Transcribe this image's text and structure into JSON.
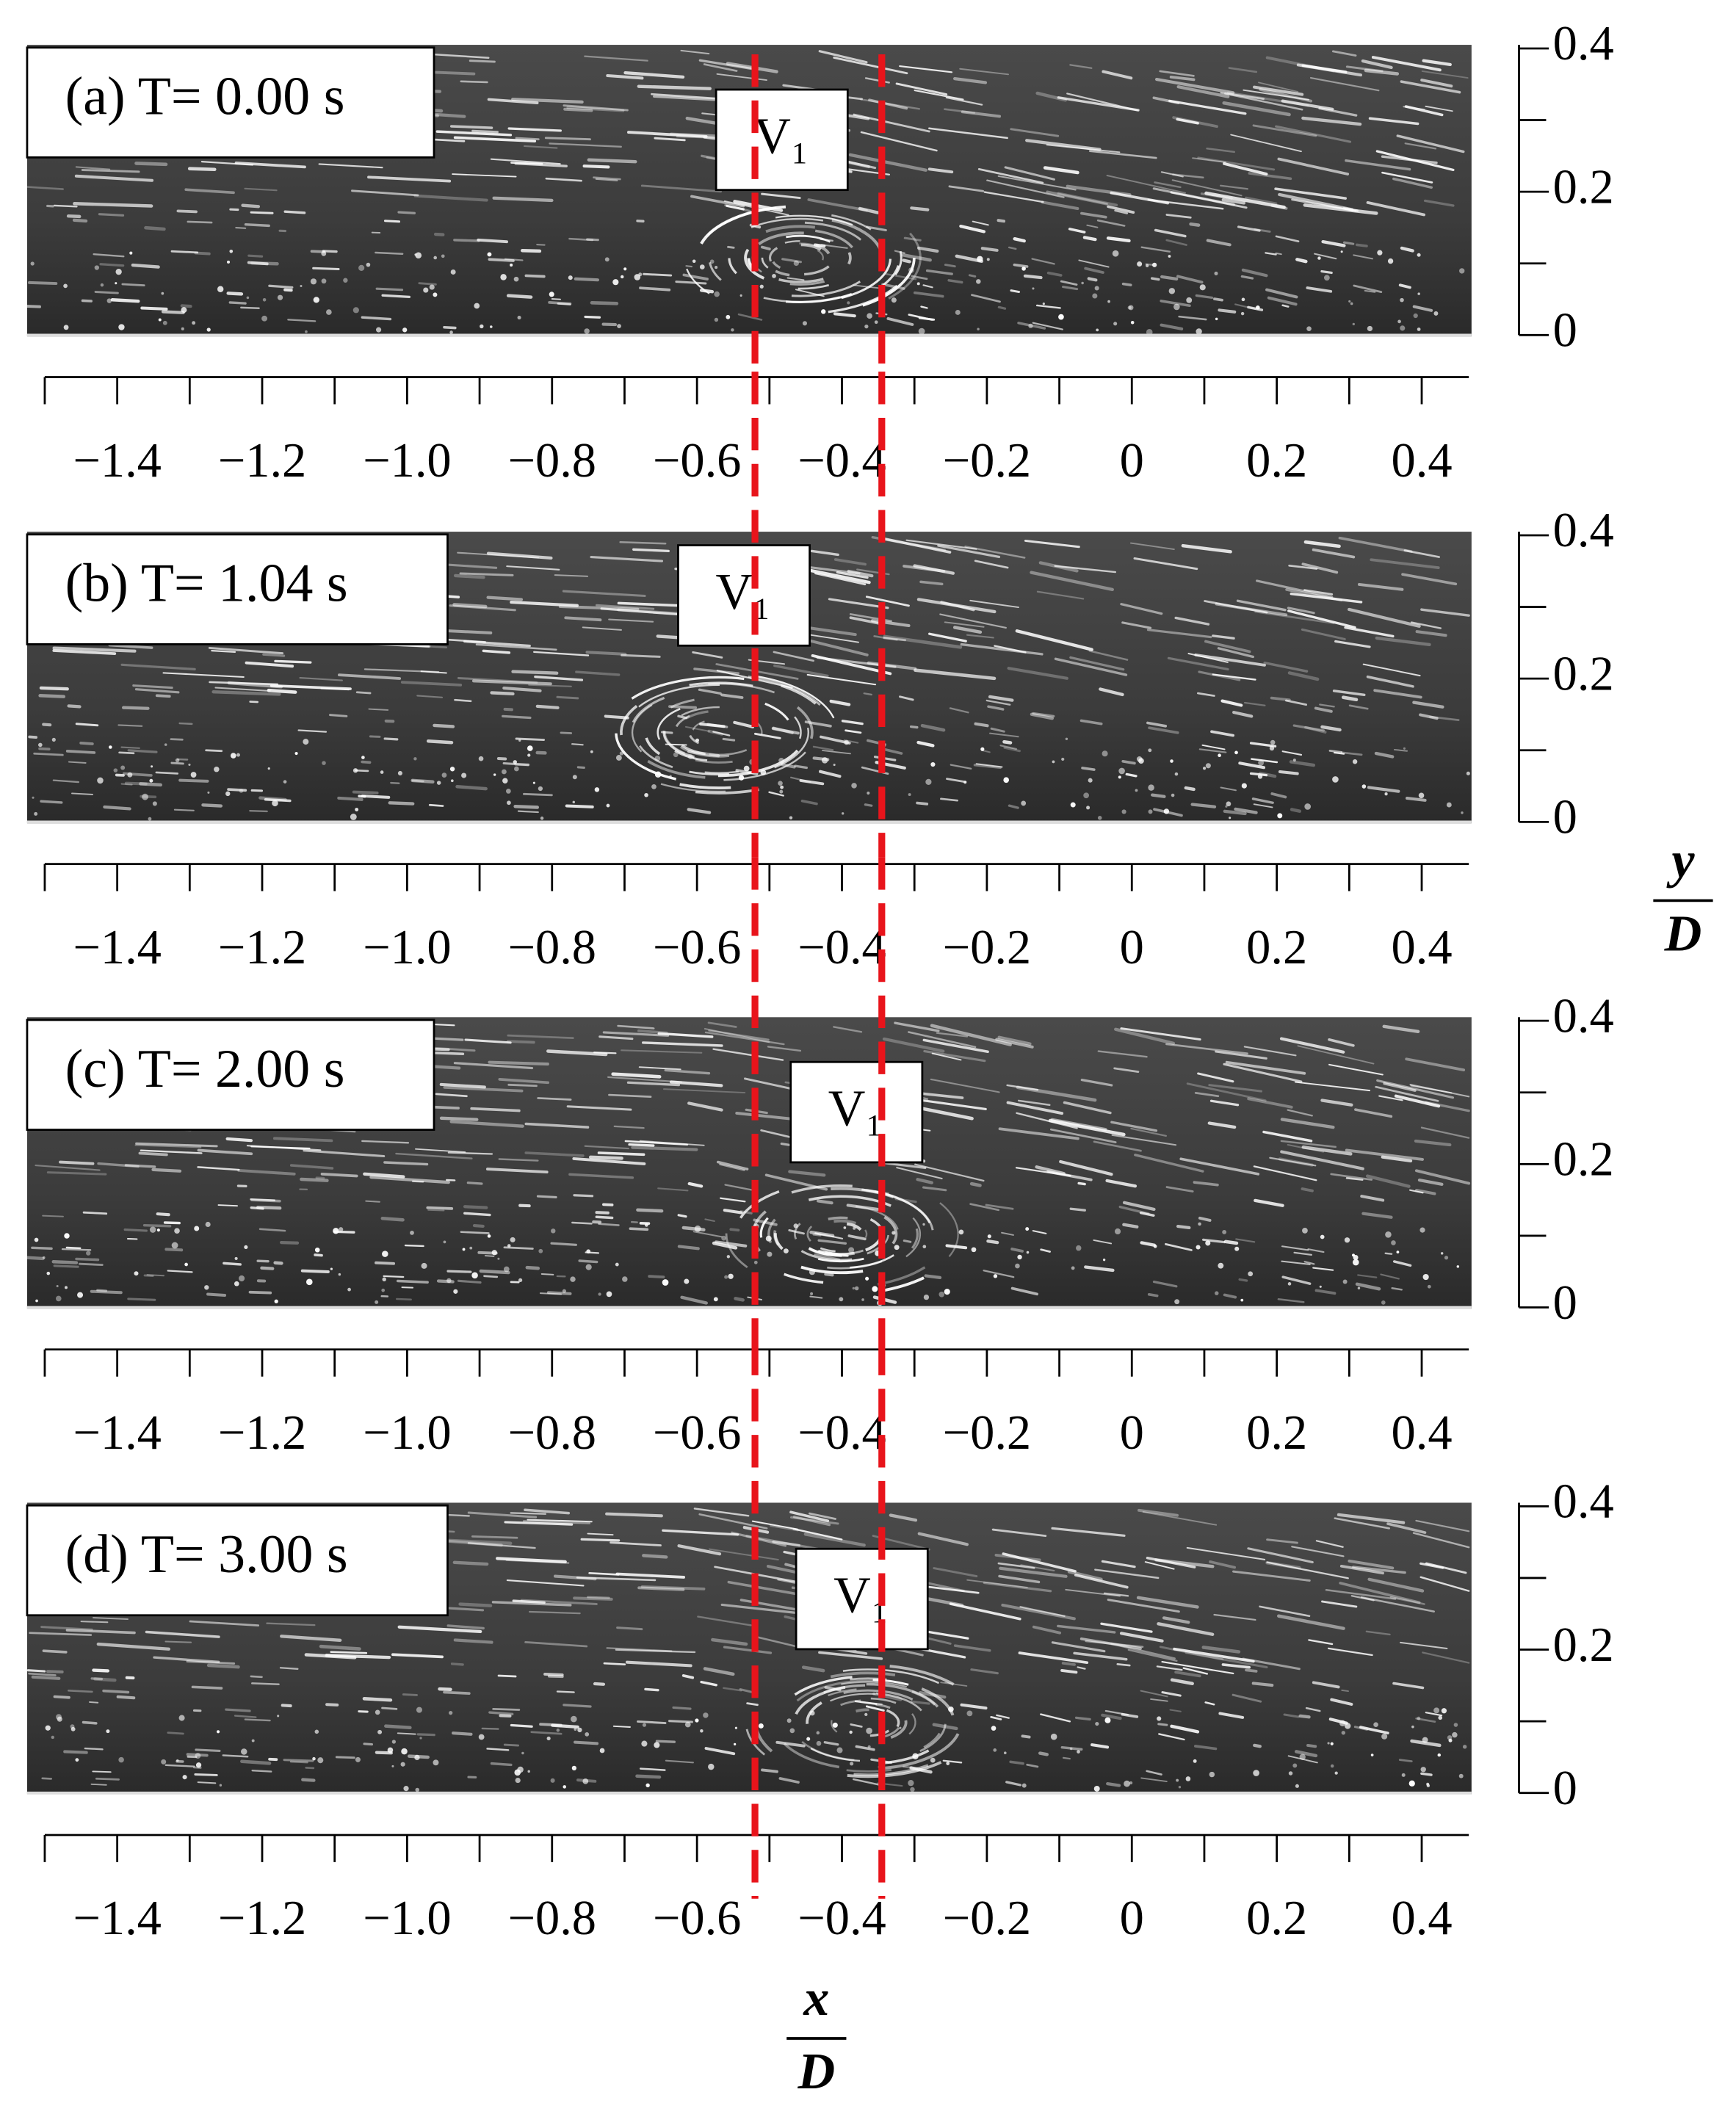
{
  "chart_data": [
    {
      "type": "streak-image",
      "title": "(a) T= 0.00 s",
      "annotation": "V₁",
      "xlim": [
        -1.5,
        0.465
      ],
      "xticks": [
        {
          "value": -1.4,
          "label": "−1.4"
        },
        {
          "value": -1.2,
          "label": "−1.2"
        },
        {
          "value": -1.0,
          "label": "−1.0"
        },
        {
          "value": -0.8,
          "label": "−0.8"
        },
        {
          "value": -0.6,
          "label": "−0.6"
        },
        {
          "value": -0.4,
          "label": "−0.4"
        },
        {
          "value": -0.2,
          "label": "−0.2"
        },
        0,
        0.2,
        0.4
      ],
      "xminorticks": [
        -1.5,
        -1.3,
        -1.1,
        -0.9,
        -0.7,
        -0.5,
        -0.3,
        -0.1,
        0.1,
        0.3
      ],
      "ylim": [
        0,
        0.405
      ],
      "yticks": [
        0,
        0.2,
        0.4
      ],
      "yminorticks": [
        0.1,
        0.3
      ],
      "vlines": [
        -0.52,
        -0.345
      ],
      "vline_color": "#e8141b"
    },
    {
      "type": "streak-image",
      "title": "(b) T= 1.04 s",
      "annotation": "V₁",
      "xlim": [
        -1.5,
        0.465
      ],
      "xticks": [
        {
          "value": -1.4,
          "label": "−1.4"
        },
        {
          "value": -1.2,
          "label": "−1.2"
        },
        {
          "value": -1.0,
          "label": "−1.0"
        },
        {
          "value": -0.8,
          "label": "−0.8"
        },
        {
          "value": -0.6,
          "label": "−0.6"
        },
        {
          "value": -0.4,
          "label": "−0.4"
        },
        {
          "value": -0.2,
          "label": "−0.2"
        },
        0,
        0.2,
        0.4
      ],
      "xminorticks": [
        -1.5,
        -1.3,
        -1.1,
        -0.9,
        -0.7,
        -0.5,
        -0.3,
        -0.1,
        0.1,
        0.3
      ],
      "ylim": [
        0,
        0.405
      ],
      "yticks": [
        0,
        0.2,
        0.4
      ],
      "yminorticks": [
        0.1,
        0.3
      ],
      "vlines": [
        -0.52,
        -0.345
      ],
      "vline_color": "#e8141b",
      "ylabel": {
        "numerator": "y",
        "denominator": "D"
      }
    },
    {
      "type": "streak-image",
      "title": "(c) T= 2.00 s",
      "annotation": "V₁",
      "xlim": [
        -1.5,
        0.465
      ],
      "xticks": [
        {
          "value": -1.4,
          "label": "−1.4"
        },
        {
          "value": -1.2,
          "label": "−1.2"
        },
        {
          "value": -1.0,
          "label": "−1.0"
        },
        {
          "value": -0.8,
          "label": "−0.8"
        },
        {
          "value": -0.6,
          "label": "−0.6"
        },
        {
          "value": -0.4,
          "label": "−0.4"
        },
        {
          "value": -0.2,
          "label": "−0.2"
        },
        0,
        0.2,
        0.4
      ],
      "xminorticks": [
        -1.5,
        -1.3,
        -1.1,
        -0.9,
        -0.7,
        -0.5,
        -0.3,
        -0.1,
        0.1,
        0.3
      ],
      "ylim": [
        0,
        0.405
      ],
      "yticks": [
        0,
        0.2,
        0.4
      ],
      "yminorticks": [
        0.1,
        0.3
      ],
      "vlines": [
        -0.52,
        -0.345
      ],
      "vline_color": "#e8141b"
    },
    {
      "type": "streak-image",
      "title": "(d) T= 3.00 s",
      "annotation": "V₁",
      "xlim": [
        -1.5,
        0.465
      ],
      "xticks": [
        {
          "value": -1.4,
          "label": "−1.4"
        },
        {
          "value": -1.2,
          "label": "−1.2"
        },
        {
          "value": -1.0,
          "label": "−1.0"
        },
        {
          "value": -0.8,
          "label": "−0.8"
        },
        {
          "value": -0.6,
          "label": "−0.6"
        },
        {
          "value": -0.4,
          "label": "−0.4"
        },
        {
          "value": -0.2,
          "label": "−0.2"
        },
        0,
        0.2,
        0.4
      ],
      "xminorticks": [
        -1.5,
        -1.3,
        -1.1,
        -0.9,
        -0.7,
        -0.5,
        -0.3,
        -0.1,
        0.1,
        0.3
      ],
      "ylim": [
        0,
        0.405
      ],
      "yticks": [
        0,
        0.2,
        0.4
      ],
      "yminorticks": [
        0.1,
        0.3
      ],
      "vlines": [
        -0.52,
        -0.345
      ],
      "vline_color": "#e8141b",
      "xlabel": {
        "numerator": "x",
        "denominator": "D"
      }
    }
  ]
}
